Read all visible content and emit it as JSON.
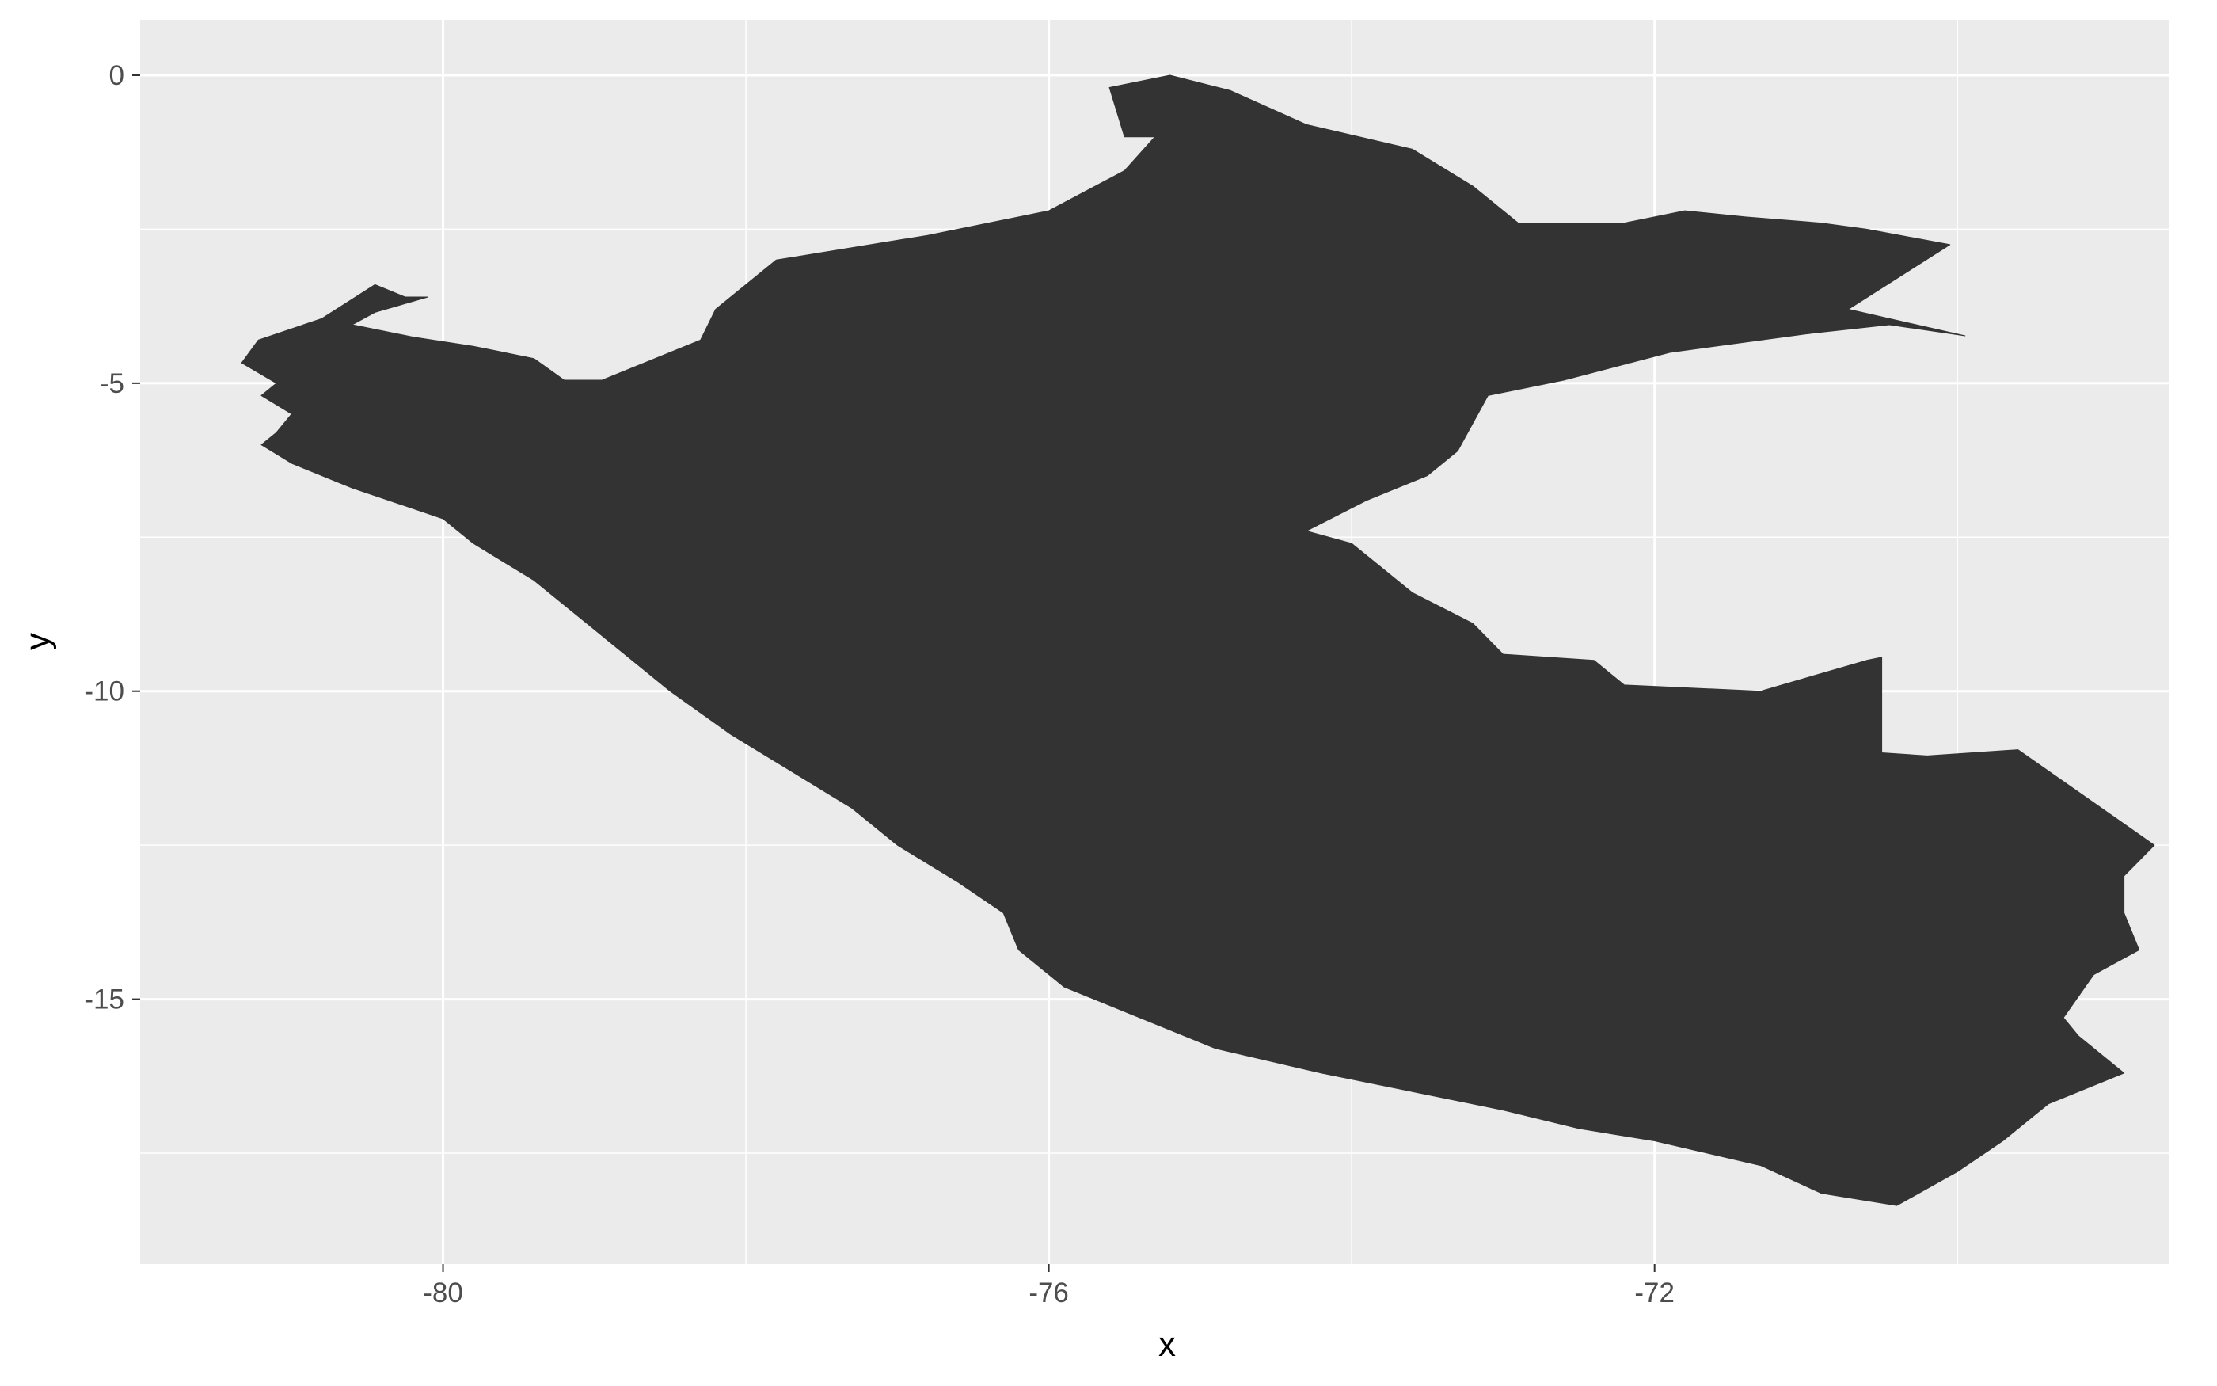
{
  "chart_data": {
    "type": "map",
    "region": "Peru",
    "xlabel": "x",
    "ylabel": "y",
    "xlim": [
      -82.0,
      -68.6
    ],
    "ylim": [
      -19.3,
      0.9
    ],
    "x_ticks": [
      -80,
      -76,
      -72
    ],
    "x_tick_labels": [
      "-80",
      "-76",
      "-72"
    ],
    "y_ticks": [
      0,
      -5,
      -10,
      -15
    ],
    "y_tick_labels": [
      "0",
      "-5",
      "-10",
      "-15"
    ],
    "grid": true,
    "colors": {
      "panel": "#ebebeb",
      "grid_major": "#ffffff",
      "fill": "#333333",
      "tick_text": "#4d4d4d",
      "tick_mark": "#333333"
    },
    "outline": [
      [
        -81.33,
        -4.67
      ],
      [
        -81.22,
        -4.3
      ],
      [
        -80.8,
        -3.95
      ],
      [
        -80.45,
        -3.4
      ],
      [
        -80.25,
        -3.6
      ],
      [
        -80.1,
        -3.6
      ],
      [
        -80.45,
        -3.85
      ],
      [
        -80.6,
        -4.05
      ],
      [
        -80.2,
        -4.25
      ],
      [
        -79.8,
        -4.4
      ],
      [
        -79.4,
        -4.6
      ],
      [
        -79.2,
        -4.95
      ],
      [
        -78.95,
        -4.95
      ],
      [
        -78.6,
        -4.6
      ],
      [
        -78.3,
        -4.3
      ],
      [
        -78.2,
        -3.8
      ],
      [
        -77.8,
        -3.0
      ],
      [
        -76.8,
        -2.6
      ],
      [
        -76.0,
        -2.2
      ],
      [
        -75.5,
        -1.55
      ],
      [
        -75.3,
        -1.0
      ],
      [
        -75.5,
        -1.0
      ],
      [
        -75.6,
        -0.2
      ],
      [
        -75.2,
        0.0
      ],
      [
        -74.8,
        -0.25
      ],
      [
        -74.3,
        -0.8
      ],
      [
        -73.6,
        -1.2
      ],
      [
        -73.2,
        -1.8
      ],
      [
        -72.9,
        -2.4
      ],
      [
        -72.2,
        -2.4
      ],
      [
        -71.8,
        -2.2
      ],
      [
        -71.4,
        -2.3
      ],
      [
        -70.9,
        -2.4
      ],
      [
        -70.6,
        -2.5
      ],
      [
        -70.05,
        -2.75
      ],
      [
        -70.72,
        -3.8
      ],
      [
        -69.95,
        -4.23
      ],
      [
        -70.45,
        -4.05
      ],
      [
        -71.0,
        -4.2
      ],
      [
        -71.9,
        -4.5
      ],
      [
        -72.6,
        -4.95
      ],
      [
        -73.1,
        -5.2
      ],
      [
        -73.3,
        -6.1
      ],
      [
        -73.5,
        -6.5
      ],
      [
        -73.9,
        -6.9
      ],
      [
        -74.3,
        -7.4
      ],
      [
        -74.0,
        -7.6
      ],
      [
        -73.8,
        -8.0
      ],
      [
        -73.6,
        -8.4
      ],
      [
        -73.2,
        -8.9
      ],
      [
        -73.0,
        -9.4
      ],
      [
        -72.4,
        -9.5
      ],
      [
        -72.2,
        -9.9
      ],
      [
        -71.3,
        -10.0
      ],
      [
        -70.6,
        -9.5
      ],
      [
        -70.5,
        -9.45
      ],
      [
        -70.5,
        -11.0
      ],
      [
        -70.2,
        -11.05
      ],
      [
        -69.6,
        -10.95
      ],
      [
        -68.7,
        -12.5
      ],
      [
        -68.9,
        -13.0
      ],
      [
        -68.9,
        -13.6
      ],
      [
        -68.8,
        -14.2
      ],
      [
        -69.1,
        -14.6
      ],
      [
        -69.3,
        -15.3
      ],
      [
        -69.2,
        -15.6
      ],
      [
        -68.9,
        -16.2
      ],
      [
        -69.4,
        -16.7
      ],
      [
        -69.7,
        -17.3
      ],
      [
        -70.0,
        -17.8
      ],
      [
        -70.4,
        -18.35
      ],
      [
        -70.9,
        -18.15
      ],
      [
        -71.3,
        -17.7
      ],
      [
        -72.0,
        -17.3
      ],
      [
        -72.5,
        -17.1
      ],
      [
        -73.0,
        -16.8
      ],
      [
        -73.6,
        -16.5
      ],
      [
        -74.2,
        -16.2
      ],
      [
        -74.9,
        -15.8
      ],
      [
        -75.5,
        -15.2
      ],
      [
        -75.9,
        -14.8
      ],
      [
        -76.2,
        -14.2
      ],
      [
        -76.3,
        -13.6
      ],
      [
        -76.6,
        -13.1
      ],
      [
        -77.0,
        -12.5
      ],
      [
        -77.3,
        -11.9
      ],
      [
        -77.7,
        -11.3
      ],
      [
        -78.1,
        -10.7
      ],
      [
        -78.5,
        -10.0
      ],
      [
        -78.8,
        -9.4
      ],
      [
        -79.1,
        -8.8
      ],
      [
        -79.4,
        -8.2
      ],
      [
        -79.8,
        -7.6
      ],
      [
        -80.0,
        -7.2
      ],
      [
        -80.6,
        -6.7
      ],
      [
        -81.0,
        -6.3
      ],
      [
        -81.2,
        -6.0
      ],
      [
        -81.1,
        -5.8
      ],
      [
        -81.0,
        -5.5
      ],
      [
        -81.2,
        -5.2
      ],
      [
        -81.1,
        -5.0
      ],
      [
        -81.33,
        -4.67
      ]
    ]
  }
}
